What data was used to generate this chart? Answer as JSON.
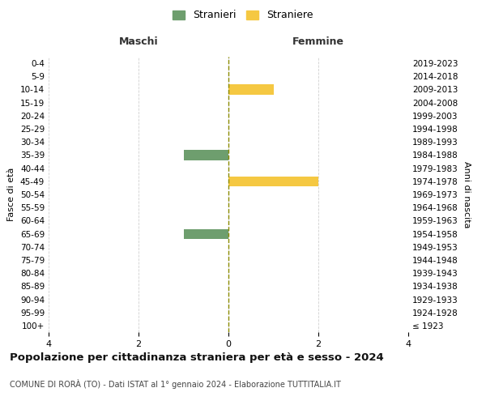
{
  "age_groups": [
    "0-4",
    "5-9",
    "10-14",
    "15-19",
    "20-24",
    "25-29",
    "30-34",
    "35-39",
    "40-44",
    "45-49",
    "50-54",
    "55-59",
    "60-64",
    "65-69",
    "70-74",
    "75-79",
    "80-84",
    "85-89",
    "90-94",
    "95-99",
    "100+"
  ],
  "birth_years": [
    "2019-2023",
    "2014-2018",
    "2009-2013",
    "2004-2008",
    "1999-2003",
    "1994-1998",
    "1989-1993",
    "1984-1988",
    "1979-1983",
    "1974-1978",
    "1969-1973",
    "1964-1968",
    "1959-1963",
    "1954-1958",
    "1949-1953",
    "1944-1948",
    "1939-1943",
    "1934-1938",
    "1929-1933",
    "1924-1928",
    "≤ 1923"
  ],
  "males": [
    0,
    0,
    0,
    0,
    0,
    0,
    0,
    1,
    0,
    0,
    0,
    0,
    0,
    1,
    0,
    0,
    0,
    0,
    0,
    0,
    0
  ],
  "females": [
    0,
    0,
    1,
    0,
    0,
    0,
    0,
    0,
    0,
    2,
    0,
    0,
    0,
    0,
    0,
    0,
    0,
    0,
    0,
    0,
    0
  ],
  "male_color": "#6e9e6e",
  "female_color": "#f5c842",
  "xlim": 4,
  "title": "Popolazione per cittadinanza straniera per età e sesso - 2024",
  "subtitle": "COMUNE DI RORÀ (TO) - Dati ISTAT al 1° gennaio 2024 - Elaborazione TUTTITALIA.IT",
  "ylabel_left": "Fasce di età",
  "ylabel_right": "Anni di nascita",
  "legend_stranieri": "Stranieri",
  "legend_straniere": "Straniere",
  "header_maschi": "Maschi",
  "header_femmine": "Femmine",
  "bg_color": "#ffffff",
  "grid_color": "#d0d0d0",
  "bar_height": 0.75,
  "xticks": [
    -4,
    -2,
    0,
    2,
    4
  ],
  "xticklabels": [
    "4",
    "2",
    "0",
    "2",
    "4"
  ]
}
